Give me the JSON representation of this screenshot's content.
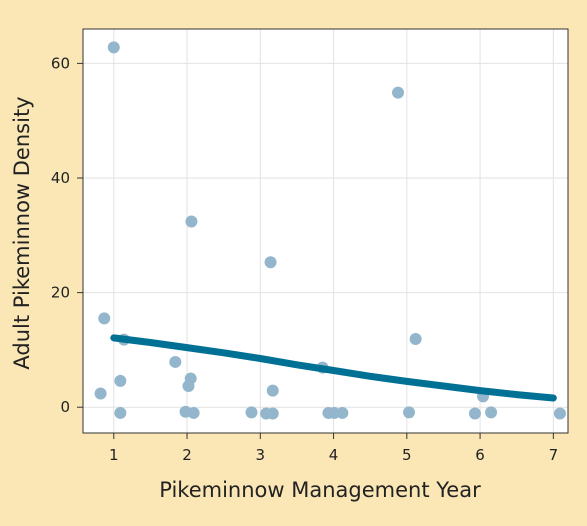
{
  "chart_data": {
    "type": "scatter",
    "xlabel": "Pikeminnow Management Year",
    "ylabel": "Adult Pikeminnow Density",
    "xlim": [
      0.58,
      7.2
    ],
    "ylim": [
      -4.5,
      66
    ],
    "x_ticks": [
      1,
      2,
      3,
      4,
      5,
      6,
      7
    ],
    "y_ticks": [
      0,
      20,
      40,
      60
    ],
    "grid": true,
    "points": [
      {
        "x": 0.82,
        "y": 2.4
      },
      {
        "x": 0.87,
        "y": 15.5
      },
      {
        "x": 1.0,
        "y": 62.8
      },
      {
        "x": 1.09,
        "y": 4.6
      },
      {
        "x": 1.09,
        "y": -1.0
      },
      {
        "x": 1.14,
        "y": 11.8
      },
      {
        "x": 1.84,
        "y": 7.9
      },
      {
        "x": 1.98,
        "y": -0.8
      },
      {
        "x": 2.02,
        "y": 3.7
      },
      {
        "x": 2.05,
        "y": 5.0
      },
      {
        "x": 2.06,
        "y": 32.4
      },
      {
        "x": 2.09,
        "y": -1.0
      },
      {
        "x": 2.88,
        "y": -0.9
      },
      {
        "x": 3.08,
        "y": -1.1
      },
      {
        "x": 3.14,
        "y": 25.3
      },
      {
        "x": 3.17,
        "y": 2.9
      },
      {
        "x": 3.17,
        "y": -1.1
      },
      {
        "x": 3.85,
        "y": 6.9
      },
      {
        "x": 3.93,
        "y": -1.0
      },
      {
        "x": 4.01,
        "y": -1.0
      },
      {
        "x": 4.12,
        "y": -1.0
      },
      {
        "x": 4.88,
        "y": 54.9
      },
      {
        "x": 5.03,
        "y": -0.9
      },
      {
        "x": 5.12,
        "y": 11.9
      },
      {
        "x": 5.93,
        "y": -1.1
      },
      {
        "x": 6.04,
        "y": 1.9
      },
      {
        "x": 6.15,
        "y": -0.9
      },
      {
        "x": 7.09,
        "y": -1.1
      }
    ],
    "trend": {
      "x": [
        1,
        1.5,
        2,
        2.5,
        3,
        3.5,
        4,
        4.5,
        5,
        5.5,
        6,
        6.5,
        7
      ],
      "y": [
        12.1,
        11.3,
        10.4,
        9.5,
        8.5,
        7.4,
        6.4,
        5.4,
        4.5,
        3.7,
        2.9,
        2.2,
        1.6
      ]
    },
    "colors": {
      "point": "#94b6cc",
      "trend": "#007194",
      "plot_background": "#ffffff",
      "page_background": "#fae7b5"
    }
  }
}
